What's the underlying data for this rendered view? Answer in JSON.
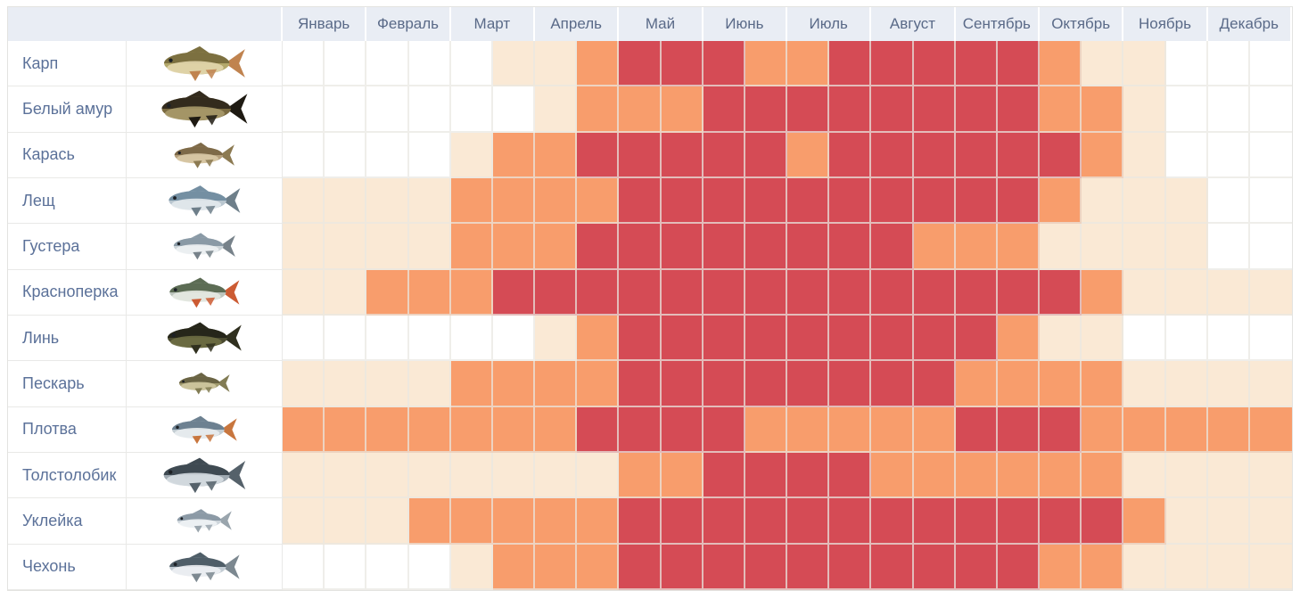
{
  "page": {
    "background": "#ffffff"
  },
  "header": {
    "bg": "#e9edf4",
    "text_color": "#5a6a88",
    "corner_label": ""
  },
  "chart_data": {
    "type": "heatmap",
    "layout": {
      "subcolumns_per_month": 2,
      "grid": "on",
      "row_label_column": "fish-name",
      "icon_column": "fish-image"
    },
    "columns": [
      "Январь",
      "Февраль",
      "Март",
      "Апрель",
      "Май",
      "Июнь",
      "Июль",
      "Август",
      "Сентябрь",
      "Октябрь",
      "Ноябрь",
      "Декабрь"
    ],
    "value_range": [
      0,
      3
    ],
    "activity_colors": {
      "0": "#ffffff",
      "1": "#fae9d5",
      "2": "#f89d6c",
      "3": "#d54b55"
    },
    "rows": [
      {
        "fish": "Карп",
        "icon": "carp-fish-icon",
        "values": [
          0,
          0,
          0,
          0,
          0,
          1,
          1,
          2,
          3,
          3,
          3,
          2,
          2,
          3,
          3,
          3,
          3,
          3,
          2,
          1,
          1,
          0,
          0,
          0
        ],
        "icon_colors": {
          "body": "#b3a86b",
          "back": "#7c7040",
          "belly": "#e2d6ad",
          "fins": "#c0834f"
        },
        "icon_size": [
          100,
          46
        ]
      },
      {
        "fish": "Белый амур",
        "icon": "grass-carp-fish-icon",
        "values": [
          0,
          0,
          0,
          0,
          0,
          0,
          1,
          2,
          2,
          2,
          3,
          3,
          3,
          3,
          3,
          3,
          3,
          3,
          2,
          2,
          1,
          0,
          0,
          0
        ],
        "icon_colors": {
          "body": "#7a6a40",
          "back": "#332b1d",
          "belly": "#a89a6a",
          "fins": "#1e1a12"
        },
        "icon_size": [
          126,
          44
        ]
      },
      {
        "fish": "Карась",
        "icon": "crucian-carp-fish-icon",
        "values": [
          0,
          0,
          0,
          0,
          1,
          2,
          2,
          3,
          3,
          3,
          3,
          3,
          2,
          3,
          3,
          3,
          3,
          3,
          3,
          2,
          1,
          0,
          0,
          0
        ],
        "icon_colors": {
          "body": "#b49e7a",
          "back": "#7e6a48",
          "belly": "#d9c9a6",
          "fins": "#8c7a52"
        },
        "icon_size": [
          74,
          36
        ]
      },
      {
        "fish": "Лещ",
        "icon": "bream-fish-icon",
        "values": [
          1,
          1,
          1,
          1,
          2,
          2,
          2,
          2,
          3,
          3,
          3,
          3,
          3,
          3,
          3,
          3,
          3,
          3,
          2,
          1,
          1,
          1,
          0,
          0
        ],
        "icon_colors": {
          "body": "#b9c6cf",
          "back": "#748fa2",
          "belly": "#e3e9ec",
          "fins": "#6e7f8a"
        },
        "icon_size": [
          88,
          42
        ]
      },
      {
        "fish": "Густера",
        "icon": "white-bream-fish-icon",
        "values": [
          1,
          1,
          1,
          1,
          2,
          2,
          2,
          3,
          3,
          3,
          3,
          3,
          3,
          3,
          3,
          2,
          2,
          2,
          1,
          1,
          1,
          1,
          0,
          0
        ],
        "icon_colors": {
          "body": "#ccd4d8",
          "back": "#8a9aa6",
          "belly": "#eef2f4",
          "fins": "#77828a"
        },
        "icon_size": [
          76,
          36
        ]
      },
      {
        "fish": "Красноперка",
        "icon": "rudd-fish-icon",
        "values": [
          1,
          1,
          2,
          2,
          2,
          3,
          3,
          3,
          3,
          3,
          3,
          3,
          3,
          3,
          3,
          3,
          3,
          3,
          3,
          2,
          1,
          1,
          1,
          1
        ],
        "icon_colors": {
          "body": "#bcc4bc",
          "back": "#5c6c54",
          "belly": "#e6eae2",
          "fins": "#cc5b33"
        },
        "icon_size": [
          86,
          38
        ]
      },
      {
        "fish": "Линь",
        "icon": "tench-fish-icon",
        "values": [
          0,
          0,
          0,
          0,
          0,
          0,
          1,
          2,
          3,
          3,
          3,
          3,
          3,
          3,
          3,
          3,
          3,
          2,
          1,
          1,
          0,
          0,
          0,
          0
        ],
        "icon_colors": {
          "body": "#4a4a30",
          "back": "#26261a",
          "belly": "#6e6e44",
          "fins": "#30301f"
        },
        "icon_size": [
          96,
          38
        ]
      },
      {
        "fish": "Пескарь",
        "icon": "gudgeon-fish-icon",
        "values": [
          1,
          1,
          1,
          1,
          2,
          2,
          2,
          2,
          3,
          3,
          3,
          3,
          3,
          3,
          3,
          3,
          2,
          2,
          2,
          2,
          1,
          1,
          1,
          1
        ],
        "icon_colors": {
          "body": "#a09a6e",
          "back": "#6a6444",
          "belly": "#cfc8a0",
          "fins": "#827c54"
        },
        "icon_size": [
          70,
          26
        ]
      },
      {
        "fish": "Плотва",
        "icon": "roach-fish-icon",
        "values": [
          2,
          2,
          2,
          2,
          2,
          2,
          2,
          3,
          3,
          3,
          3,
          2,
          2,
          2,
          2,
          2,
          3,
          3,
          3,
          2,
          2,
          2,
          2,
          2
        ],
        "icon_colors": {
          "body": "#c2ccd2",
          "back": "#6d8191",
          "belly": "#e9edf0",
          "fins": "#c8763e"
        },
        "icon_size": [
          80,
          34
        ]
      },
      {
        "fish": "Толстолобик",
        "icon": "silver-carp-fish-icon",
        "values": [
          1,
          1,
          1,
          1,
          1,
          1,
          1,
          1,
          2,
          2,
          3,
          3,
          3,
          3,
          2,
          2,
          2,
          2,
          2,
          2,
          1,
          1,
          1,
          1
        ],
        "icon_colors": {
          "body": "#9fa9b1",
          "back": "#3f4a52",
          "belly": "#d6dde2",
          "fins": "#55616a"
        },
        "icon_size": [
          118,
          42
        ]
      },
      {
        "fish": "Уклейка",
        "icon": "bleak-fish-icon",
        "values": [
          1,
          1,
          1,
          2,
          2,
          2,
          2,
          2,
          3,
          3,
          3,
          3,
          3,
          3,
          3,
          3,
          3,
          3,
          3,
          3,
          2,
          1,
          1,
          1
        ],
        "icon_colors": {
          "body": "#cdd5db",
          "back": "#8c9aa6",
          "belly": "#f0f3f5",
          "fins": "#9aa5ad"
        },
        "icon_size": [
          86,
          28
        ]
      },
      {
        "fish": "Чехонь",
        "icon": "sabrefish-fish-icon",
        "values": [
          0,
          0,
          0,
          0,
          1,
          2,
          2,
          2,
          3,
          3,
          3,
          3,
          3,
          3,
          3,
          3,
          3,
          3,
          2,
          2,
          1,
          1,
          1,
          1
        ],
        "icon_colors": {
          "body": "#c3ccd4",
          "back": "#4f5e68",
          "belly": "#eef1f4",
          "fins": "#7c8890"
        },
        "icon_size": [
          118,
          36
        ]
      }
    ]
  }
}
